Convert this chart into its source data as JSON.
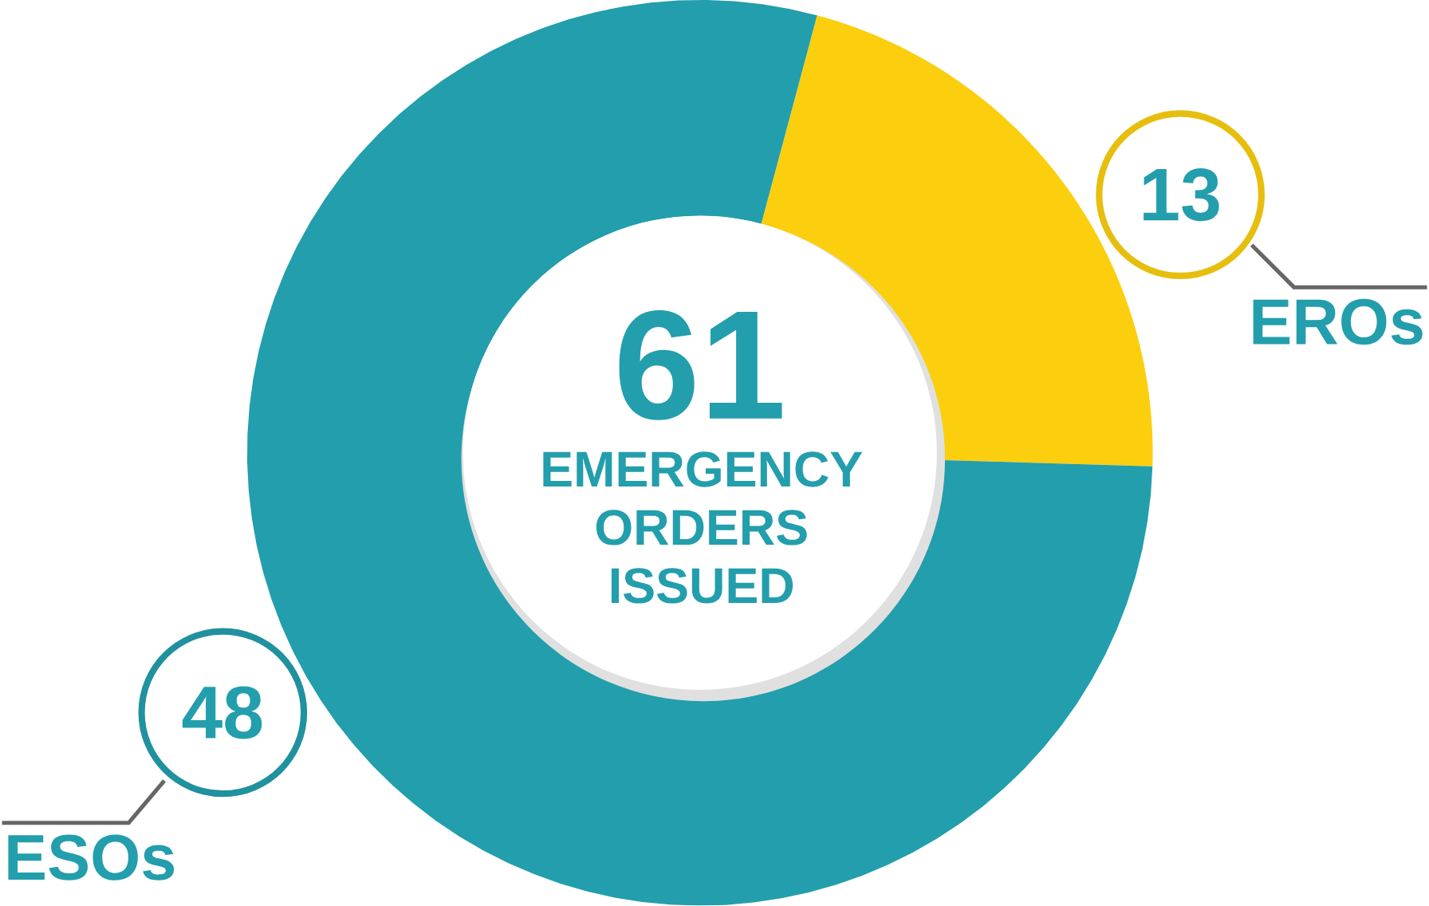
{
  "chart_data": {
    "type": "donut",
    "title": "EMERGENCY ORDERS ISSUED",
    "annotations": [
      "61"
    ],
    "categories": [
      "EROs",
      "ESOs"
    ],
    "values": [
      13,
      48
    ],
    "colors": [
      "#fbcf0e",
      "#239eac"
    ],
    "data_labels": true
  }
}
